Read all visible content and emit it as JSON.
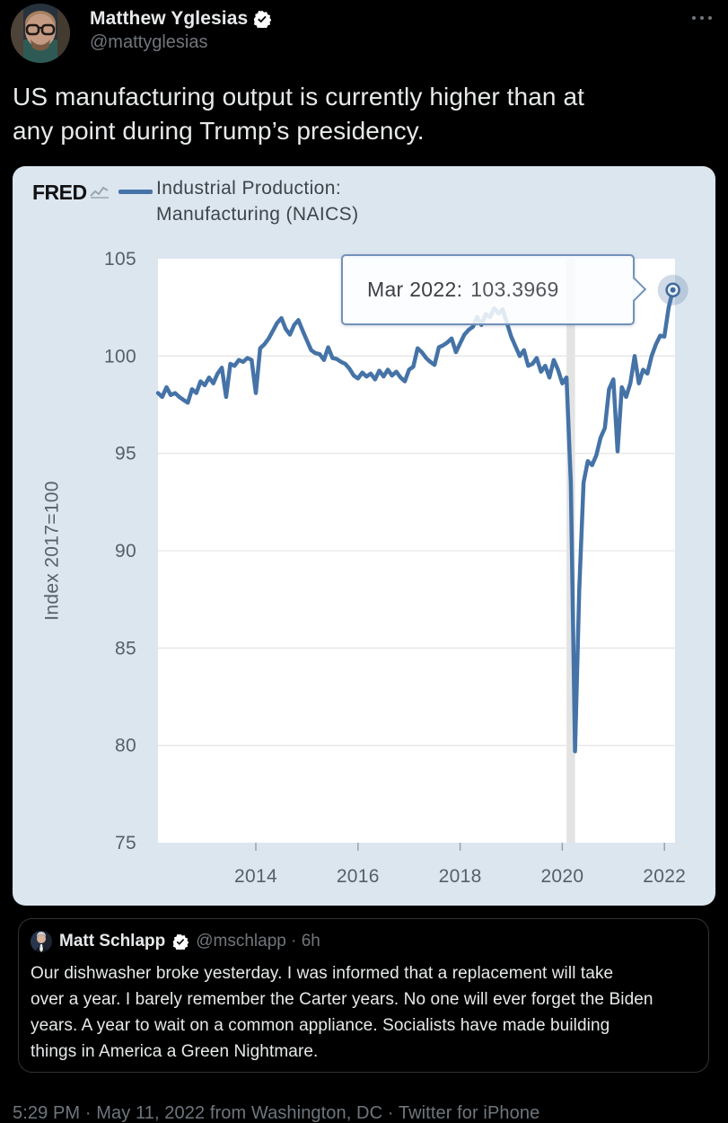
{
  "colors": {
    "background": "#000000",
    "text_primary": "#e7e9ea",
    "text_secondary": "#71767b",
    "chart_card_bg": "#dce6ef",
    "chart_line": "#4573a7",
    "tooltip_border": "#7391ba"
  },
  "tweet": {
    "author": {
      "name": "Matthew Yglesias",
      "handle": "@mattyglesias",
      "verified": true
    },
    "body_lines": [
      "US manufacturing output is currently higher than at",
      "any point during Trump’s presidency."
    ],
    "footer": "5:29 PM · May 11, 2022 from Washington, DC · Twitter for iPhone"
  },
  "quote": {
    "author": {
      "name": "Matt Schlapp",
      "verified": true
    },
    "meta": "@mschlapp · 6h",
    "body_lines": [
      "Our dishwasher broke yesterday. I was informed that a replacement will take",
      "over a year. I barely remember the Carter years. No one will ever forget the Biden",
      "years. A year to wait on a common appliance. Socialists have made building",
      "things in America a Green Nightmare."
    ]
  },
  "chart": {
    "brand": "FRED",
    "legend_lines": [
      "Industrial Production:",
      "Manufacturing (NAICS)"
    ],
    "y_axis_title": "Index 2017=100",
    "tooltip": {
      "label": "Mar 2022:",
      "value": "103.3969"
    }
  },
  "chart_data": {
    "type": "line",
    "title": "Industrial Production: Manufacturing (NAICS)",
    "ylabel": "Index 2017=100",
    "legend_position": "top",
    "grid": "horizontal",
    "frequency": "monthly",
    "start_month": "2012-02",
    "end_month": "2022-03",
    "x_start_decimal": 2012.0833,
    "x_step": 0.0833333,
    "xlim": [
      2012.0833,
      2022.2083
    ],
    "ylim": [
      75,
      105
    ],
    "x_ticks": [
      2014,
      2016,
      2018,
      2020,
      2022
    ],
    "y_ticks": [
      75,
      80,
      85,
      90,
      95,
      100,
      105
    ],
    "y_gridlines": [
      80,
      85,
      90,
      95,
      100
    ],
    "recession_band": [
      2020.0833,
      2020.25
    ],
    "line_color": "#4573a7",
    "last_point_label": "Mar 2022: 103.3969",
    "values": [
      98.1,
      97.9,
      98.4,
      98.0,
      98.1,
      97.9,
      97.75,
      97.6,
      98.3,
      98.1,
      98.7,
      98.5,
      98.9,
      98.6,
      99.1,
      99.4,
      97.9,
      99.6,
      99.5,
      99.8,
      99.7,
      99.9,
      99.8,
      98.1,
      100.4,
      100.6,
      100.9,
      101.3,
      101.7,
      101.95,
      101.4,
      101.1,
      101.6,
      101.85,
      101.3,
      100.8,
      100.3,
      100.15,
      100.1,
      99.8,
      100.45,
      99.9,
      99.85,
      99.7,
      99.6,
      99.35,
      99.0,
      98.85,
      99.15,
      98.95,
      99.1,
      98.8,
      99.25,
      98.95,
      99.3,
      99.0,
      99.2,
      98.9,
      98.7,
      99.3,
      99.45,
      100.4,
      100.2,
      99.9,
      99.7,
      99.55,
      100.45,
      100.55,
      100.7,
      100.9,
      100.2,
      100.65,
      101.1,
      101.35,
      101.5,
      102.0,
      101.6,
      102.15,
      102.0,
      102.45,
      102.2,
      102.4,
      101.7,
      101.0,
      100.5,
      100.0,
      100.3,
      99.5,
      99.6,
      99.9,
      99.2,
      99.5,
      98.9,
      99.8,
      99.3,
      98.6,
      98.9,
      93.5,
      79.7,
      88.0,
      93.5,
      94.6,
      94.4,
      94.9,
      95.8,
      96.3,
      98.3,
      98.8,
      95.1,
      98.4,
      97.9,
      98.6,
      100.0,
      98.6,
      99.3,
      99.1,
      100.0,
      100.6,
      101.05,
      101.0,
      102.5,
      103.3969
    ]
  }
}
